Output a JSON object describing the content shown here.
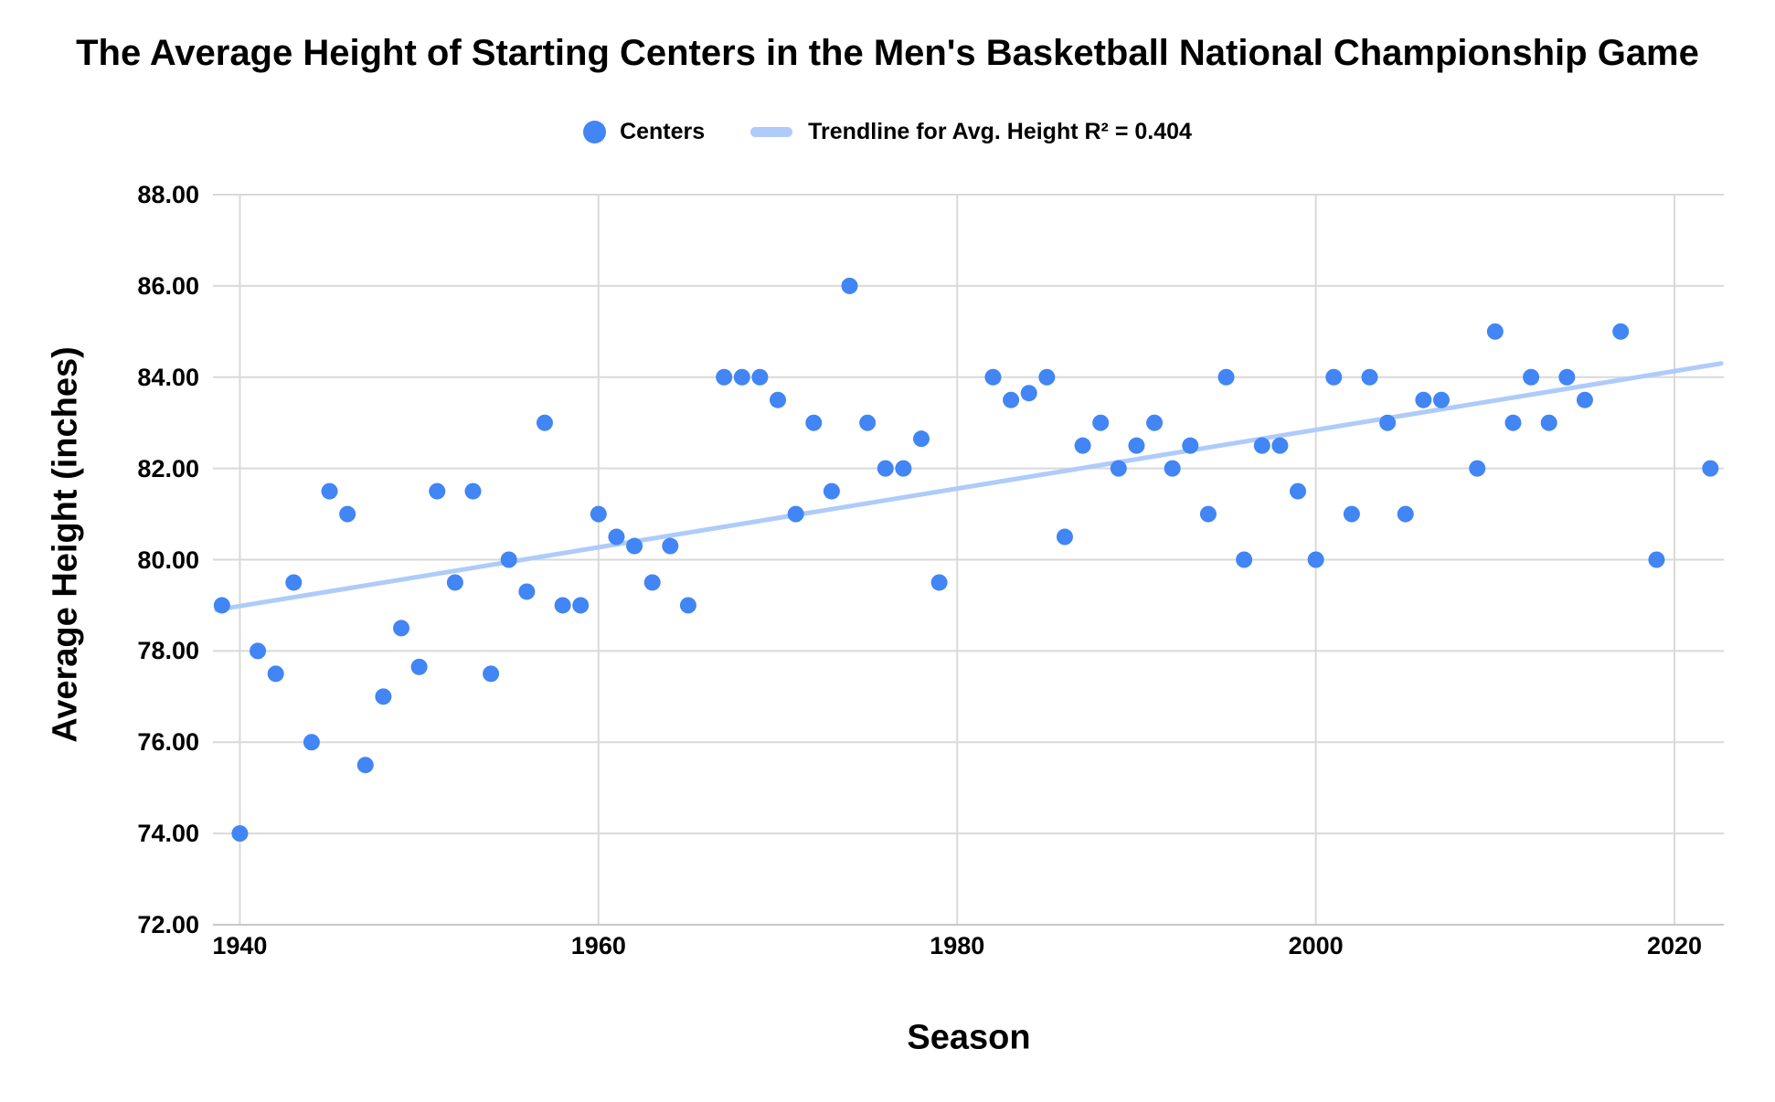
{
  "title": "The Average Height of Starting Centers in the Men's Basketball National Championship Game",
  "legend": {
    "series_label": "Centers",
    "trendline_label": "Trendline for Avg. Height R² = 0.404"
  },
  "axes": {
    "y_title": "Average Height (inches)",
    "x_title": "Season",
    "y_ticks": [
      {
        "label": "88.00",
        "value": 88
      },
      {
        "label": "86.00",
        "value": 86
      },
      {
        "label": "84.00",
        "value": 84
      },
      {
        "label": "82.00",
        "value": 82
      },
      {
        "label": "80.00",
        "value": 80
      },
      {
        "label": "78.00",
        "value": 78
      },
      {
        "label": "76.00",
        "value": 76
      },
      {
        "label": "74.00",
        "value": 74
      },
      {
        "label": "72.00",
        "value": 72
      }
    ],
    "x_ticks": [
      {
        "label": "1940",
        "value": 1940
      },
      {
        "label": "1960",
        "value": 1960
      },
      {
        "label": "1980",
        "value": 1980
      },
      {
        "label": "2000",
        "value": 2000
      },
      {
        "label": "2020",
        "value": 2020
      }
    ]
  },
  "colors": {
    "point": "#4285f4",
    "trendline": "#aecbfa",
    "gridline": "#d9d9d9",
    "baseline": "#c7c7c7",
    "text": "#000000",
    "background": "#ffffff"
  },
  "chart_data": {
    "type": "scatter",
    "title": "The Average Height of Starting Centers in the Men's Basketball National Championship Game",
    "xlabel": "Season",
    "ylabel": "Average Height (inches)",
    "xlim": [
      1938.5,
      2022.75
    ],
    "ylim": [
      72,
      88
    ],
    "grid": true,
    "legend_position": "top",
    "series": [
      {
        "name": "Centers",
        "points": [
          [
            1939,
            79.0
          ],
          [
            1940,
            74.0
          ],
          [
            1941,
            78.0
          ],
          [
            1942,
            77.5
          ],
          [
            1943,
            79.5
          ],
          [
            1944,
            76.0
          ],
          [
            1945,
            81.5
          ],
          [
            1946,
            81.0
          ],
          [
            1947,
            75.5
          ],
          [
            1948,
            77.0
          ],
          [
            1949,
            78.5
          ],
          [
            1950,
            77.65
          ],
          [
            1951,
            81.5
          ],
          [
            1952,
            79.5
          ],
          [
            1953,
            81.5
          ],
          [
            1954,
            77.5
          ],
          [
            1955,
            80.0
          ],
          [
            1956,
            79.3
          ],
          [
            1957,
            83.0
          ],
          [
            1958,
            79.0
          ],
          [
            1959,
            79.0
          ],
          [
            1960,
            81.0
          ],
          [
            1961,
            80.5
          ],
          [
            1962,
            80.3
          ],
          [
            1963,
            79.5
          ],
          [
            1964,
            80.3
          ],
          [
            1965,
            79.0
          ],
          [
            1967,
            84.0
          ],
          [
            1968,
            84.0
          ],
          [
            1969,
            84.0
          ],
          [
            1970,
            83.5
          ],
          [
            1971,
            81.0
          ],
          [
            1972,
            83.0
          ],
          [
            1973,
            81.5
          ],
          [
            1974,
            86.0
          ],
          [
            1975,
            83.0
          ],
          [
            1976,
            82.0
          ],
          [
            1977,
            82.0
          ],
          [
            1978,
            82.65
          ],
          [
            1979,
            79.5
          ],
          [
            1982,
            84.0
          ],
          [
            1983,
            83.5
          ],
          [
            1984,
            83.65
          ],
          [
            1985,
            84.0
          ],
          [
            1986,
            80.5
          ],
          [
            1987,
            82.5
          ],
          [
            1988,
            83.0
          ],
          [
            1989,
            82.0
          ],
          [
            1990,
            82.5
          ],
          [
            1991,
            83.0
          ],
          [
            1992,
            82.0
          ],
          [
            1993,
            82.5
          ],
          [
            1994,
            81.0
          ],
          [
            1995,
            84.0
          ],
          [
            1996,
            80.0
          ],
          [
            1997,
            82.5
          ],
          [
            1998,
            82.5
          ],
          [
            1999,
            81.5
          ],
          [
            2000,
            80.0
          ],
          [
            2001,
            84.0
          ],
          [
            2002,
            81.0
          ],
          [
            2003,
            84.0
          ],
          [
            2004,
            83.0
          ],
          [
            2005,
            81.0
          ],
          [
            2006,
            83.5
          ],
          [
            2007,
            83.5
          ],
          [
            2009,
            82.0
          ],
          [
            2010,
            85.0
          ],
          [
            2011,
            83.0
          ],
          [
            2012,
            84.0
          ],
          [
            2013,
            83.0
          ],
          [
            2014,
            84.0
          ],
          [
            2015,
            83.5
          ],
          [
            2017,
            85.0
          ],
          [
            2019,
            80.0
          ],
          [
            2022,
            82.0
          ]
        ]
      }
    ],
    "trendline": {
      "name": "Trendline for Avg. Height",
      "r_squared": 0.404,
      "x1": 1938.7,
      "y1": 78.9,
      "x2": 2022.6,
      "y2": 84.3
    }
  }
}
